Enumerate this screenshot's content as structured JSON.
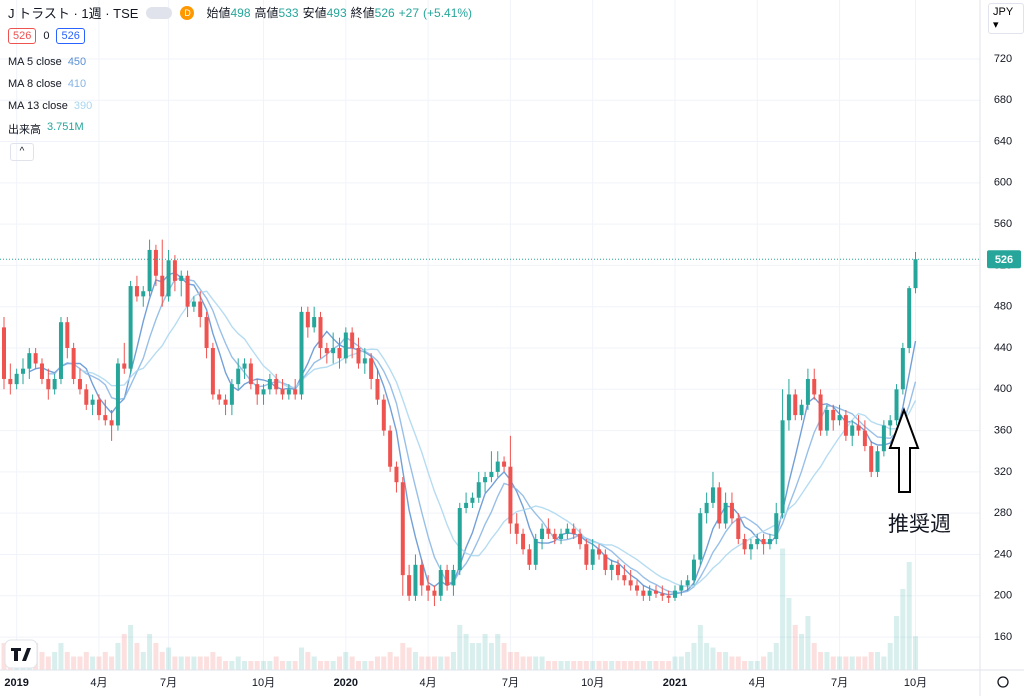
{
  "chart_data": {
    "type": "candlestick",
    "title": "J トラスト · 1週 · TSE",
    "badge": "D",
    "legend_ohlc": [
      {
        "label": "始値",
        "value": 498
      },
      {
        "label": "高値",
        "value": 533
      },
      {
        "label": "安値",
        "value": 493
      },
      {
        "label": "終値",
        "value": 526
      }
    ],
    "change": {
      "value": 27,
      "label": "+27"
    },
    "change_pct": {
      "value": 5.41,
      "label": "(+5.41%)"
    },
    "spread": 0,
    "currency": "JPY",
    "moving_averages": [
      {
        "name": "MA 5 close",
        "period": 5,
        "value": 450,
        "color": "#5b8fd1"
      },
      {
        "name": "MA 8 close",
        "period": 8,
        "value": 410,
        "color": "#86b4e3"
      },
      {
        "name": "MA 13 close",
        "period": 13,
        "value": 390,
        "color": "#a9d6f0"
      }
    ],
    "volume_name": "出来高",
    "volume_value_label": "3.751M",
    "annotation": "推奨週",
    "up_color": "#26a69a",
    "down_color": "#ef5350",
    "ylim": [
      128.1,
      777.1
    ],
    "yticks": [
      160,
      200,
      240,
      280,
      320,
      360,
      400,
      440,
      480,
      520,
      560,
      600,
      640,
      680,
      720
    ],
    "grid": true,
    "categories": [
      null,
      null,
      "2019",
      null,
      null,
      null,
      null,
      null,
      null,
      null,
      null,
      null,
      null,
      null,
      null,
      "4月",
      null,
      null,
      null,
      null,
      null,
      null,
      null,
      null,
      null,
      null,
      "7月",
      null,
      null,
      null,
      null,
      null,
      null,
      null,
      null,
      null,
      null,
      null,
      null,
      null,
      null,
      "10月",
      null,
      null,
      null,
      null,
      null,
      null,
      null,
      null,
      null,
      null,
      null,
      null,
      "2020",
      null,
      null,
      null,
      null,
      null,
      null,
      null,
      null,
      null,
      null,
      null,
      null,
      "4月",
      null,
      null,
      null,
      null,
      null,
      null,
      null,
      null,
      null,
      null,
      null,
      null,
      "7月",
      null,
      null,
      null,
      null,
      null,
      null,
      null,
      null,
      null,
      null,
      null,
      null,
      "10月",
      null,
      null,
      null,
      null,
      null,
      null,
      null,
      null,
      null,
      null,
      null,
      null,
      "2021",
      null,
      null,
      null,
      null,
      null,
      null,
      null,
      null,
      null,
      null,
      null,
      null,
      "4月",
      null,
      null,
      null,
      null,
      null,
      null,
      null,
      null,
      null,
      null,
      null,
      null,
      "7月",
      null,
      null,
      null,
      null,
      null,
      null,
      null,
      null,
      null,
      null,
      null,
      "10月"
    ],
    "ohlc": [
      [
        460,
        470,
        400,
        410
      ],
      [
        410,
        425,
        395,
        405
      ],
      [
        405,
        420,
        400,
        415
      ],
      [
        415,
        430,
        405,
        420
      ],
      [
        420,
        440,
        410,
        435
      ],
      [
        435,
        440,
        420,
        425
      ],
      [
        425,
        430,
        405,
        410
      ],
      [
        410,
        420,
        390,
        400
      ],
      [
        400,
        415,
        395,
        410
      ],
      [
        410,
        470,
        405,
        465
      ],
      [
        465,
        470,
        430,
        440
      ],
      [
        440,
        445,
        405,
        410
      ],
      [
        410,
        420,
        395,
        400
      ],
      [
        400,
        405,
        380,
        385
      ],
      [
        385,
        395,
        375,
        390
      ],
      [
        390,
        395,
        370,
        375
      ],
      [
        375,
        390,
        365,
        370
      ],
      [
        370,
        380,
        350,
        365
      ],
      [
        365,
        430,
        360,
        425
      ],
      [
        425,
        445,
        415,
        420
      ],
      [
        420,
        505,
        415,
        500
      ],
      [
        500,
        510,
        485,
        490
      ],
      [
        490,
        500,
        480,
        495
      ],
      [
        495,
        545,
        490,
        535
      ],
      [
        535,
        540,
        500,
        510
      ],
      [
        510,
        545,
        480,
        490
      ],
      [
        490,
        535,
        485,
        525
      ],
      [
        525,
        530,
        495,
        505
      ],
      [
        505,
        515,
        490,
        510
      ],
      [
        510,
        515,
        470,
        480
      ],
      [
        480,
        490,
        475,
        485
      ],
      [
        485,
        495,
        460,
        470
      ],
      [
        470,
        475,
        430,
        440
      ],
      [
        440,
        445,
        390,
        395
      ],
      [
        395,
        400,
        385,
        390
      ],
      [
        390,
        395,
        375,
        385
      ],
      [
        385,
        410,
        375,
        405
      ],
      [
        405,
        430,
        400,
        420
      ],
      [
        420,
        430,
        410,
        425
      ],
      [
        425,
        430,
        400,
        405
      ],
      [
        405,
        410,
        385,
        395
      ],
      [
        395,
        405,
        385,
        400
      ],
      [
        400,
        415,
        395,
        410
      ],
      [
        410,
        415,
        395,
        400
      ],
      [
        400,
        410,
        390,
        395
      ],
      [
        395,
        405,
        390,
        400
      ],
      [
        400,
        410,
        390,
        395
      ],
      [
        395,
        480,
        390,
        475
      ],
      [
        475,
        480,
        450,
        460
      ],
      [
        460,
        480,
        455,
        470
      ],
      [
        470,
        475,
        430,
        440
      ],
      [
        440,
        445,
        425,
        435
      ],
      [
        435,
        455,
        425,
        440
      ],
      [
        440,
        450,
        420,
        430
      ],
      [
        430,
        460,
        425,
        455
      ],
      [
        455,
        460,
        430,
        440
      ],
      [
        440,
        450,
        420,
        425
      ],
      [
        425,
        440,
        415,
        430
      ],
      [
        430,
        435,
        400,
        410
      ],
      [
        410,
        420,
        385,
        390
      ],
      [
        390,
        395,
        355,
        360
      ],
      [
        360,
        365,
        320,
        325
      ],
      [
        325,
        330,
        300,
        310
      ],
      [
        310,
        315,
        200,
        220
      ],
      [
        220,
        230,
        195,
        200
      ],
      [
        200,
        240,
        195,
        230
      ],
      [
        230,
        235,
        200,
        210
      ],
      [
        210,
        220,
        195,
        205
      ],
      [
        205,
        210,
        190,
        200
      ],
      [
        200,
        230,
        195,
        225
      ],
      [
        225,
        230,
        205,
        210
      ],
      [
        210,
        230,
        200,
        225
      ],
      [
        225,
        290,
        220,
        285
      ],
      [
        285,
        300,
        280,
        290
      ],
      [
        290,
        300,
        285,
        295
      ],
      [
        295,
        320,
        290,
        310
      ],
      [
        310,
        320,
        300,
        315
      ],
      [
        315,
        340,
        310,
        320
      ],
      [
        320,
        340,
        315,
        330
      ],
      [
        330,
        335,
        320,
        325
      ],
      [
        325,
        355,
        260,
        270
      ],
      [
        270,
        280,
        250,
        260
      ],
      [
        260,
        265,
        240,
        245
      ],
      [
        245,
        250,
        225,
        230
      ],
      [
        230,
        260,
        225,
        255
      ],
      [
        255,
        270,
        245,
        265
      ],
      [
        265,
        275,
        255,
        260
      ],
      [
        260,
        265,
        250,
        255
      ],
      [
        255,
        265,
        250,
        260
      ],
      [
        260,
        270,
        255,
        265
      ],
      [
        265,
        270,
        255,
        260
      ],
      [
        260,
        265,
        245,
        250
      ],
      [
        250,
        255,
        225,
        230
      ],
      [
        230,
        255,
        225,
        245
      ],
      [
        245,
        250,
        235,
        240
      ],
      [
        240,
        245,
        220,
        225
      ],
      [
        225,
        235,
        215,
        230
      ],
      [
        230,
        235,
        215,
        220
      ],
      [
        220,
        230,
        210,
        215
      ],
      [
        215,
        225,
        205,
        210
      ],
      [
        210,
        215,
        200,
        205
      ],
      [
        205,
        210,
        195,
        200
      ],
      [
        200,
        210,
        195,
        205
      ],
      [
        205,
        210,
        198,
        202
      ],
      [
        202,
        210,
        195,
        200
      ],
      [
        200,
        205,
        193,
        198
      ],
      [
        198,
        210,
        195,
        205
      ],
      [
        205,
        215,
        200,
        210
      ],
      [
        210,
        220,
        205,
        215
      ],
      [
        215,
        240,
        210,
        235
      ],
      [
        235,
        285,
        230,
        280
      ],
      [
        280,
        300,
        270,
        290
      ],
      [
        290,
        320,
        285,
        305
      ],
      [
        305,
        310,
        265,
        270
      ],
      [
        270,
        300,
        265,
        290
      ],
      [
        290,
        300,
        270,
        275
      ],
      [
        275,
        280,
        250,
        255
      ],
      [
        255,
        260,
        240,
        245
      ],
      [
        245,
        255,
        235,
        250
      ],
      [
        250,
        260,
        245,
        255
      ],
      [
        255,
        260,
        240,
        250
      ],
      [
        250,
        260,
        245,
        255
      ],
      [
        255,
        290,
        250,
        280
      ],
      [
        280,
        400,
        275,
        370
      ],
      [
        370,
        410,
        360,
        395
      ],
      [
        395,
        400,
        370,
        375
      ],
      [
        375,
        390,
        370,
        385
      ],
      [
        385,
        420,
        380,
        410
      ],
      [
        410,
        420,
        390,
        395
      ],
      [
        395,
        400,
        355,
        360
      ],
      [
        360,
        385,
        355,
        380
      ],
      [
        380,
        385,
        360,
        370
      ],
      [
        370,
        385,
        365,
        375
      ],
      [
        375,
        380,
        350,
        355
      ],
      [
        355,
        370,
        345,
        365
      ],
      [
        365,
        375,
        355,
        360
      ],
      [
        360,
        370,
        340,
        345
      ],
      [
        345,
        350,
        315,
        320
      ],
      [
        320,
        345,
        315,
        340
      ],
      [
        340,
        370,
        335,
        365
      ],
      [
        365,
        375,
        355,
        370
      ],
      [
        370,
        405,
        365,
        400
      ],
      [
        400,
        445,
        395,
        440
      ],
      [
        440,
        500,
        435,
        498
      ],
      [
        498,
        533,
        493,
        526
      ]
    ],
    "volume": [
      3,
      2,
      2,
      1.5,
      2,
      3,
      2,
      1.5,
      2,
      3,
      2,
      1.5,
      1.5,
      2,
      1.5,
      1.5,
      2,
      1.5,
      3,
      4,
      5,
      3,
      2,
      4,
      3,
      2,
      2.5,
      1.5,
      1.5,
      1.5,
      1.5,
      1.5,
      1.5,
      2,
      1.5,
      1,
      1,
      1.5,
      1,
      1,
      1,
      1,
      1,
      1.5,
      1,
      1,
      1,
      2.5,
      2,
      1.5,
      1,
      1,
      1,
      1.5,
      2,
      1.5,
      1,
      1,
      1,
      1.5,
      1.5,
      2,
      1.5,
      3,
      2.5,
      2,
      1.5,
      1.5,
      1.5,
      1.5,
      1.5,
      2,
      5,
      4,
      3,
      3,
      4,
      3,
      4,
      3,
      2,
      2,
      1.5,
      1.5,
      1.5,
      1.5,
      1,
      1,
      1,
      1,
      1,
      1,
      1,
      1,
      1,
      1,
      1,
      1,
      1,
      1,
      1,
      1,
      1,
      1,
      1,
      1,
      1.5,
      1.5,
      2,
      3,
      5,
      3,
      2.5,
      2,
      2,
      1.5,
      1.5,
      1,
      1,
      1,
      1.5,
      2,
      3,
      13.5,
      8,
      5,
      4,
      6,
      3,
      2,
      2,
      1.5,
      1.5,
      1.5,
      1.5,
      1.5,
      1.5,
      2,
      2,
      1.5,
      3,
      6,
      9,
      12,
      3.751
    ]
  }
}
